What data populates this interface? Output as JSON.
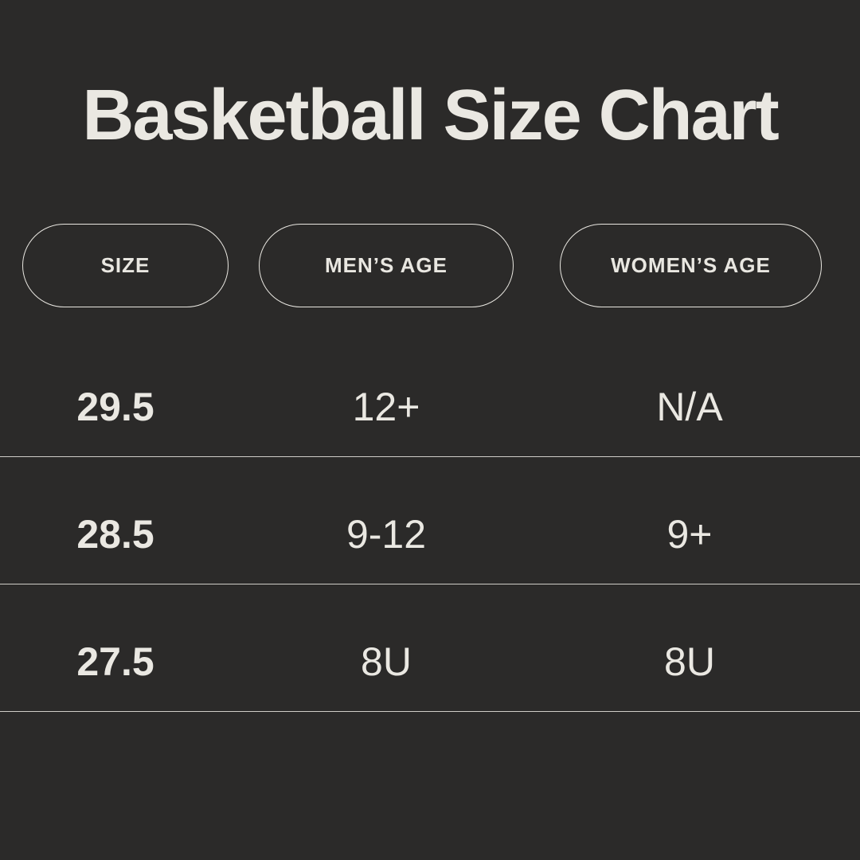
{
  "chart_data": {
    "type": "table",
    "title": "Basketball Size Chart",
    "columns": [
      "SIZE",
      "MEN’S AGE",
      "WOMEN’S AGE"
    ],
    "rows": [
      [
        "29.5",
        "12+",
        "N/A"
      ],
      [
        "28.5",
        "9-12",
        "9+"
      ],
      [
        "27.5",
        "8U",
        "8U"
      ]
    ],
    "layout": {
      "header_style": "outlined-pill",
      "row_separator": "thin-light-line",
      "columns_note": "first column bold, others regular"
    }
  },
  "colors": {
    "background": "#2b2a29",
    "text": "#eae8e2",
    "pill_border": "#e9e7e1",
    "separator": "#cfcdc7"
  }
}
